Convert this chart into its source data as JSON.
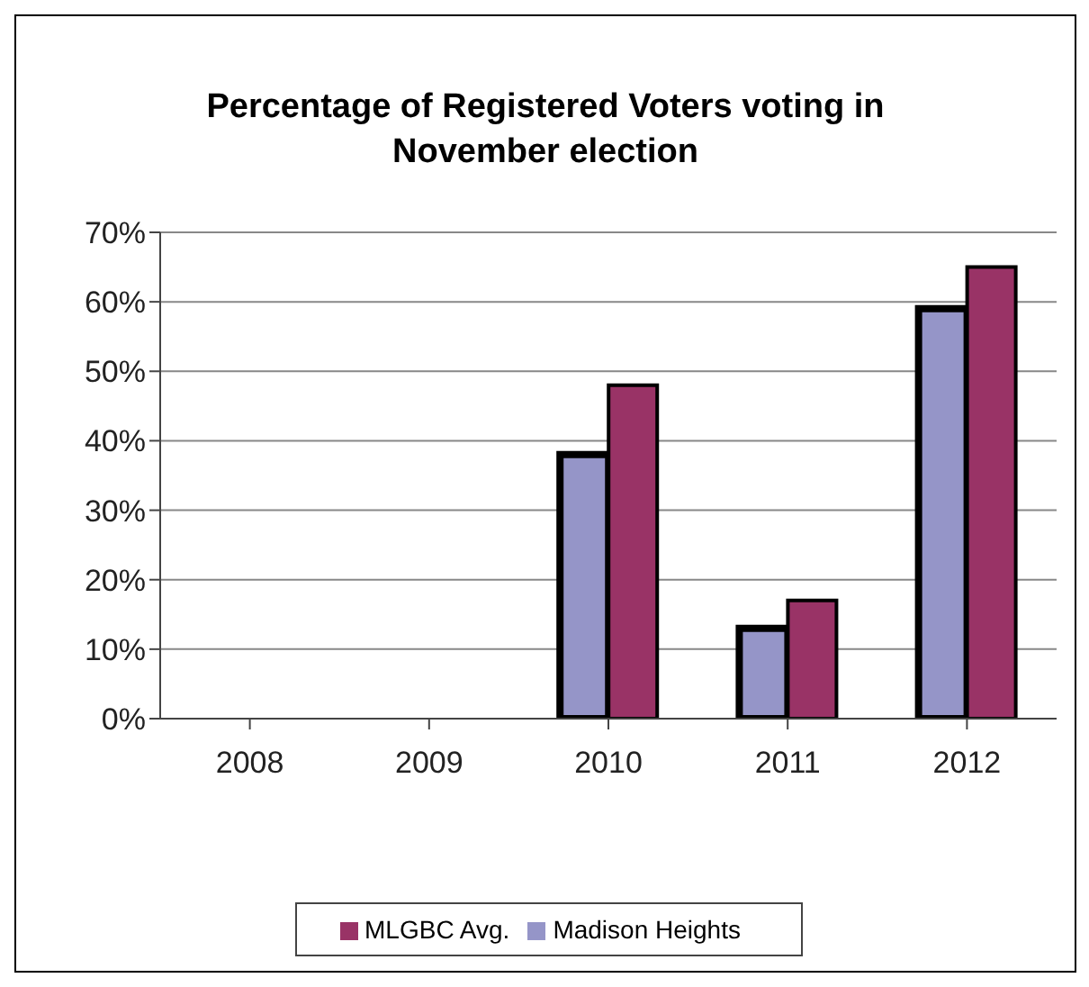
{
  "chart_data": {
    "type": "bar",
    "title": "Percentage of Registered Voters voting in November election",
    "categories": [
      "2008",
      "2009",
      "2010",
      "2011",
      "2012"
    ],
    "series": [
      {
        "name": "Madison Heights",
        "color": "#9595c8",
        "values": [
          null,
          null,
          38,
          13,
          59
        ]
      },
      {
        "name": "MLGBC Avg.",
        "color": "#993366",
        "values": [
          null,
          null,
          48,
          17,
          65
        ]
      }
    ],
    "ylim": [
      0,
      70
    ],
    "yticks": [
      {
        "value": 0,
        "label": "0%"
      },
      {
        "value": 10,
        "label": "10%"
      },
      {
        "value": 20,
        "label": "20%"
      },
      {
        "value": 30,
        "label": "30%"
      },
      {
        "value": 40,
        "label": "40%"
      },
      {
        "value": 50,
        "label": "50%"
      },
      {
        "value": 60,
        "label": "60%"
      },
      {
        "value": 70,
        "label": "70%"
      }
    ],
    "grid": "y",
    "legend": "bottom"
  }
}
